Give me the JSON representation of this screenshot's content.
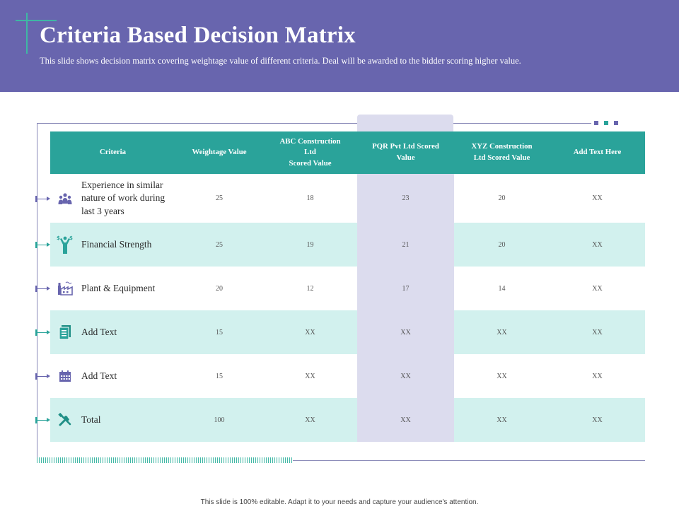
{
  "slide": {
    "title": "Criteria Based Decision Matrix",
    "subtitle": "This slide shows decision matrix covering weightage value of different criteria. Deal will be awarded to the bidder scoring higher value."
  },
  "table": {
    "headers": {
      "criteria": "Criteria",
      "weightage": "Weightage Value",
      "abc_line1": "ABC Construction",
      "abc_line2": "Ltd",
      "abc_line3": "Scored Value",
      "pqr_line1": "PQR Pvt Ltd Scored",
      "pqr_line2": "Value",
      "xyz_line1": "XYZ Construction",
      "xyz_line2": "Ltd Scored Value",
      "extra": "Add Text Here"
    },
    "rows": [
      {
        "icon": "people-group-icon",
        "criteria": "Experience in similar nature of work during last 3 years",
        "weightage": "25",
        "abc": "18",
        "pqr": "23",
        "xyz": "20",
        "extra": "XX"
      },
      {
        "icon": "money-hand-icon",
        "criteria": "Financial Strength",
        "weightage": "25",
        "abc": "19",
        "pqr": "21",
        "xyz": "20",
        "extra": "XX"
      },
      {
        "icon": "factory-icon",
        "criteria": "Plant & Equipment",
        "weightage": "20",
        "abc": "12",
        "pqr": "17",
        "xyz": "14",
        "extra": "XX"
      },
      {
        "icon": "document-stack-icon",
        "criteria": "Add Text",
        "weightage": "15",
        "abc": "XX",
        "pqr": "XX",
        "xyz": "XX",
        "extra": "XX"
      },
      {
        "icon": "calendar-icon",
        "criteria": "Add Text",
        "weightage": "15",
        "abc": "XX",
        "pqr": "XX",
        "xyz": "XX",
        "extra": "XX"
      },
      {
        "icon": "tools-icon",
        "criteria": "Total",
        "weightage": "100",
        "abc": "XX",
        "pqr": "XX",
        "xyz": "XX",
        "extra": "XX"
      }
    ]
  },
  "footer": {
    "note": "This slide is 100% editable. Adapt it to your needs and capture your audience's attention."
  },
  "colors": {
    "header_bg": "#6865ae",
    "teal": "#2aa39a",
    "teal_light": "#d2f1ee",
    "lavender": "#dcdcee",
    "purple": "#6865ae"
  }
}
